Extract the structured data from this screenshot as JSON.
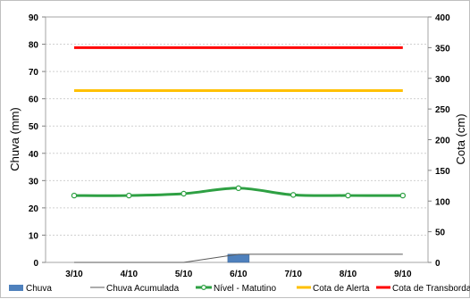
{
  "chart_data": {
    "type": "line",
    "categories": [
      "3/10",
      "4/10",
      "5/10",
      "6/10",
      "7/10",
      "8/10",
      "9/10"
    ],
    "ylabel_left": "Chuva (mm)",
    "ylabel_right": "Cota (cm)",
    "ylim_left": [
      0,
      90
    ],
    "yticks_left": [
      0,
      10,
      20,
      30,
      40,
      50,
      60,
      70,
      80,
      90
    ],
    "ylim_right": [
      0,
      400
    ],
    "yticks_right": [
      0,
      50,
      100,
      150,
      200,
      250,
      300,
      350,
      400
    ],
    "grid": true,
    "legend_position": "bottom",
    "series": [
      {
        "name": "Chuva",
        "type": "bar",
        "axis": "left",
        "color": "#4f81bd",
        "values": [
          0,
          0,
          0,
          3,
          0,
          0,
          0
        ]
      },
      {
        "name": "Chuva Acumulada",
        "type": "line",
        "axis": "left",
        "color": "#595959",
        "values": [
          0,
          0,
          0,
          3,
          3,
          3,
          3
        ]
      },
      {
        "name": "Nível - Matutino",
        "type": "line",
        "axis": "right",
        "color": "#2ea043",
        "marker": "circle",
        "values": [
          109,
          109,
          112,
          121,
          110,
          109,
          109
        ]
      },
      {
        "name": "Cota de Alerta",
        "type": "line",
        "axis": "right",
        "color": "#ffc000",
        "values": [
          280,
          280,
          280,
          280,
          280,
          280,
          280
        ]
      },
      {
        "name": "Cota de Transbordamento",
        "type": "line",
        "axis": "right",
        "color": "#ff0000",
        "values": [
          350,
          350,
          350,
          350,
          350,
          350,
          350
        ]
      }
    ]
  }
}
